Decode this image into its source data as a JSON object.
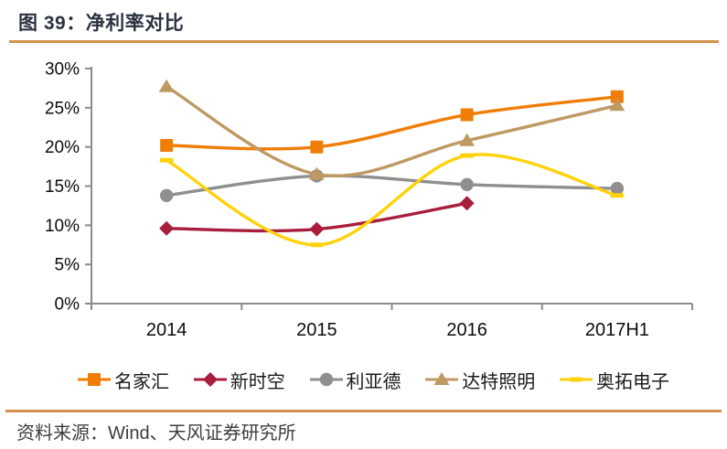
{
  "title": "图 39：净利率对比",
  "footer": {
    "source": "资料来源：Wind、天风证券研究所"
  },
  "colors": {
    "accent_rule": "#D2914A",
    "title_text": "#2B3240",
    "axis": "#8C8C8C",
    "tick_text": "#0D0D0D",
    "footer_text": "#3D3D3D"
  },
  "chart_data": {
    "type": "line",
    "title": "净利率对比",
    "categories": [
      "2014",
      "2015",
      "2016",
      "2017H1"
    ],
    "series": [
      {
        "name": "名家汇",
        "color": "#F07D06",
        "marker": "square",
        "values": [
          20.2,
          20.0,
          24.1,
          26.4
        ]
      },
      {
        "name": "新时空",
        "color": "#A81E3C",
        "marker": "diamond",
        "values": [
          9.6,
          9.5,
          12.8,
          null
        ]
      },
      {
        "name": "利亚德",
        "color": "#8F8F8F",
        "marker": "circle",
        "values": [
          13.8,
          16.3,
          15.2,
          14.7
        ]
      },
      {
        "name": "达特照明",
        "color": "#BE9A62",
        "marker": "triangle",
        "values": [
          27.7,
          16.5,
          20.8,
          25.3
        ]
      },
      {
        "name": "奥拓电子",
        "color": "#FFD20A",
        "marker": "dash",
        "values": [
          18.3,
          7.5,
          18.9,
          13.8
        ]
      }
    ],
    "ylabel": "",
    "xlabel": "",
    "ylim": [
      0,
      30
    ],
    "ytick_step": 5,
    "ytick_labels": [
      "0%",
      "5%",
      "10%",
      "15%",
      "20%",
      "25%",
      "30%"
    ],
    "unit": "%",
    "smooth": true,
    "grid": false,
    "legend_position": "bottom"
  }
}
